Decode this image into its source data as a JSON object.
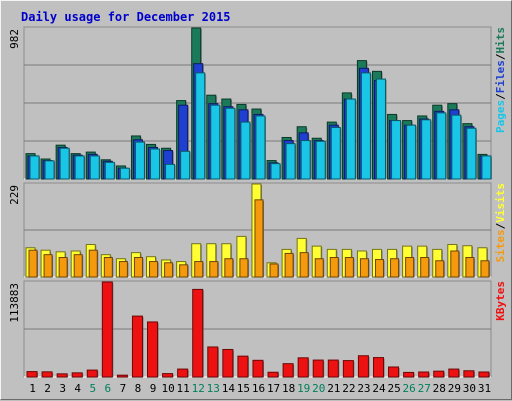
{
  "chart_data": {
    "type": "bar",
    "title": "Daily usage for December 2015",
    "categories": [
      "1",
      "2",
      "3",
      "4",
      "5",
      "6",
      "7",
      "8",
      "9",
      "10",
      "11",
      "12",
      "13",
      "14",
      "15",
      "16",
      "17",
      "18",
      "19",
      "20",
      "21",
      "22",
      "23",
      "24",
      "25",
      "26",
      "27",
      "28",
      "29",
      "30",
      "31"
    ],
    "weekend_days": [
      "5",
      "6",
      "12",
      "13",
      "19",
      "20",
      "26",
      "27"
    ],
    "panels": [
      {
        "id": "top",
        "y_tick_label": "982",
        "ylim": [
          0,
          982
        ],
        "axis_legend": [
          "Pages",
          "Files",
          "Hits"
        ],
        "series": [
          {
            "name": "Hits",
            "color": "#1b7a5a",
            "values": [
              165,
              130,
              220,
              165,
              175,
              125,
              85,
              280,
              225,
              200,
              510,
              982,
              545,
              520,
              485,
              455,
              120,
              270,
              340,
              265,
              370,
              560,
              770,
              700,
              420,
              380,
              410,
              480,
              490,
              360,
              160
            ]
          },
          {
            "name": "Files",
            "color": "#1e3fd0",
            "values": [
              150,
              120,
              205,
              155,
              160,
              115,
              70,
              255,
              205,
              185,
              480,
              750,
              490,
              470,
              450,
              420,
              105,
              250,
              300,
              250,
              350,
              520,
              720,
              640,
              380,
              350,
              390,
              440,
              450,
              340,
              150
            ]
          },
          {
            "name": "Pages",
            "color": "#19c6e6",
            "values": [
              150,
              118,
              200,
              150,
              150,
              108,
              70,
              240,
              195,
              95,
              180,
              690,
              480,
              460,
              370,
              410,
              100,
              230,
              250,
              245,
              335,
              520,
              690,
              650,
              380,
              350,
              385,
              430,
              415,
              330,
              150
            ]
          }
        ]
      },
      {
        "id": "middle",
        "y_tick_label": "229",
        "ylim": [
          0,
          229
        ],
        "axis_legend": [
          "Sites",
          "Visits"
        ],
        "series": [
          {
            "name": "Visits",
            "color": "#ffff33",
            "values": [
              72,
              66,
              62,
              64,
              80,
              55,
              45,
              60,
              50,
              42,
              38,
              82,
              82,
              82,
              100,
              229,
              35,
              68,
              95,
              76,
              68,
              68,
              64,
              68,
              68,
              76,
              76,
              68,
              80,
              77,
              72
            ]
          },
          {
            "name": "Sites",
            "color": "#f59a0d",
            "values": [
              66,
              55,
              48,
              55,
              66,
              48,
              38,
              48,
              38,
              35,
              30,
              38,
              38,
              45,
              45,
              190,
              32,
              58,
              60,
              45,
              48,
              48,
              45,
              43,
              45,
              48,
              48,
              40,
              64,
              48,
              40
            ]
          }
        ]
      },
      {
        "id": "bottom",
        "y_tick_label": "113883",
        "ylim": [
          0,
          113883
        ],
        "axis_legend": [
          "KBytes"
        ],
        "series": [
          {
            "name": "KBytes",
            "color": "#ee1111",
            "values": [
              6500,
              6200,
              3800,
              5000,
              8300,
              113883,
              2200,
              73000,
              66000,
              4100,
              9500,
              105000,
              36000,
              33000,
              25000,
              20000,
              5700,
              16000,
              23000,
              20300,
              20300,
              19700,
              25500,
              23300,
              12000,
              5500,
              6000,
              7000,
              9500,
              7500,
              6000
            ]
          }
        ]
      }
    ],
    "colors": {
      "background": "#c0c0c0",
      "plot": "#c0c0c0",
      "title": "#0000cc",
      "weekday_label": "#000000",
      "weekend_label": "#00805a",
      "slash": "#000000"
    }
  }
}
